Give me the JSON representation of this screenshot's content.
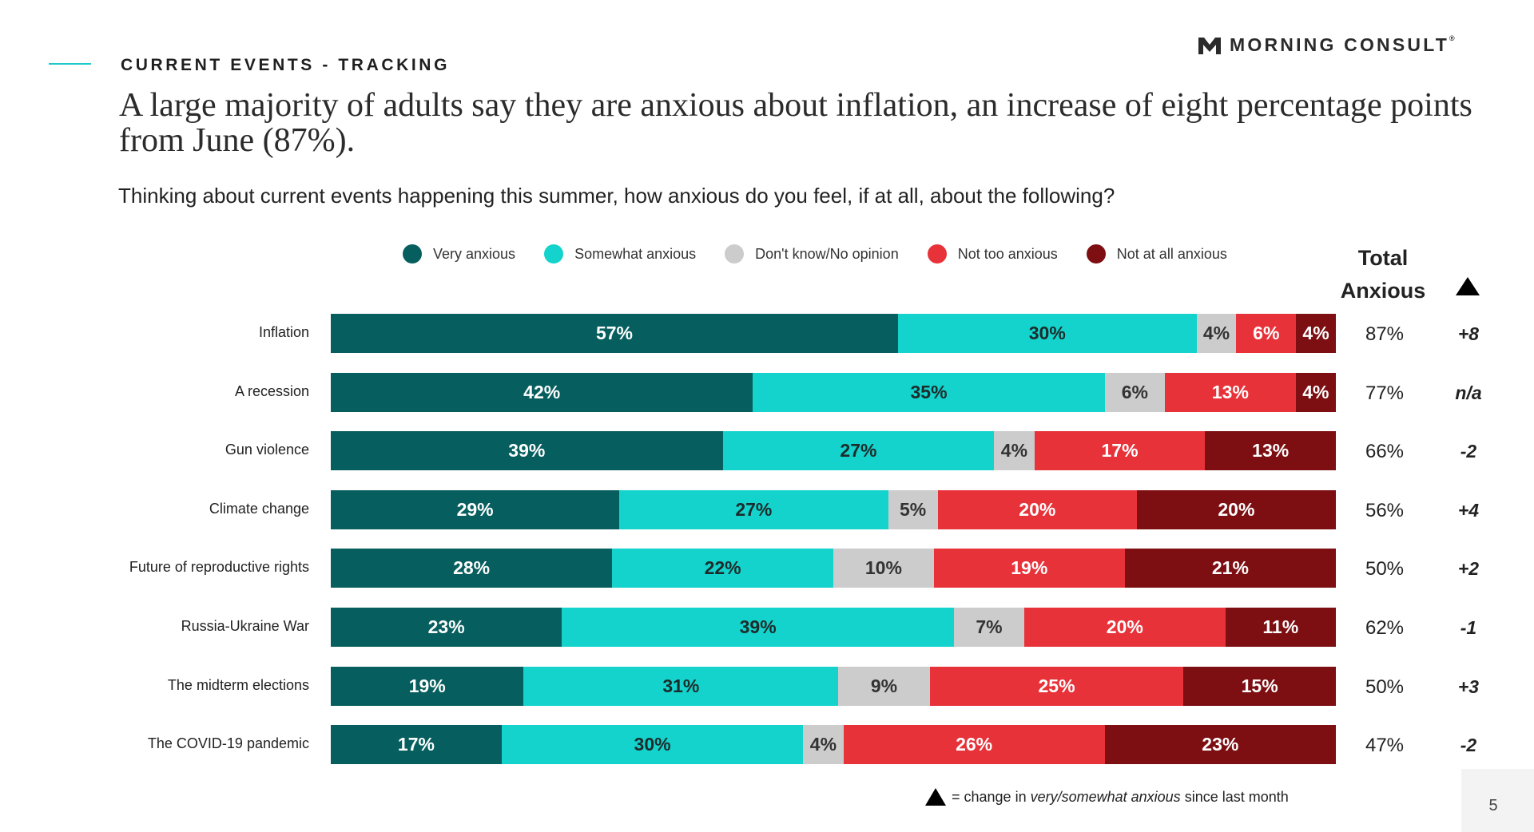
{
  "header": {
    "section_label": "CURRENT EVENTS - TRACKING",
    "logo_text": "MORNING CONSULT",
    "logo_mark": "®",
    "headline": "A large majority of adults say they are anxious about inflation, an increase of eight percentage points from June (87%).",
    "question": "Thinking about current events happening this summer, how anxious do you feel, if at all, about the following?"
  },
  "legend": [
    {
      "label": "Very anxious",
      "color": "#075e5e"
    },
    {
      "label": "Somewhat anxious",
      "color": "#13d3cc"
    },
    {
      "label": "Don't know/No opinion",
      "color": "#cccccc"
    },
    {
      "label": "Not too anxious",
      "color": "#e8323a"
    },
    {
      "label": "Not at all anxious",
      "color": "#7d0e12"
    }
  ],
  "columns": {
    "total_line1": "Total",
    "total_line2": "Anxious",
    "change_icon": "triangle-up-icon"
  },
  "chart_data": {
    "type": "bar",
    "orientation": "horizontal",
    "stacked": true,
    "categories": [
      "Inflation",
      "A recession",
      "Gun violence",
      "Climate change",
      "Future of reproductive rights",
      "Russia-Ukraine War",
      "The midterm elections",
      "The COVID-19 pandemic"
    ],
    "series": [
      {
        "name": "Very anxious",
        "values": [
          57,
          42,
          39,
          29,
          28,
          23,
          19,
          17
        ]
      },
      {
        "name": "Somewhat anxious",
        "values": [
          30,
          35,
          27,
          27,
          22,
          39,
          31,
          30
        ]
      },
      {
        "name": "Don't know/No opinion",
        "values": [
          4,
          6,
          4,
          5,
          10,
          7,
          9,
          4
        ]
      },
      {
        "name": "Not too anxious",
        "values": [
          6,
          13,
          17,
          20,
          19,
          20,
          25,
          26
        ]
      },
      {
        "name": "Not at all anxious",
        "values": [
          4,
          4,
          13,
          20,
          21,
          11,
          15,
          23
        ]
      }
    ],
    "value_suffix": "%",
    "total_anxious": [
      "87%",
      "77%",
      "66%",
      "56%",
      "50%",
      "62%",
      "50%",
      "47%"
    ],
    "change": [
      "+8",
      "n/a",
      "-2",
      "+4",
      "+2",
      "-1",
      "+3",
      "-2"
    ]
  },
  "footnote": {
    "prefix": "= ",
    "text_plain": "change in ",
    "text_italic": "very/somewhat anxious",
    "text_end": " since last month"
  },
  "page_number": "5"
}
